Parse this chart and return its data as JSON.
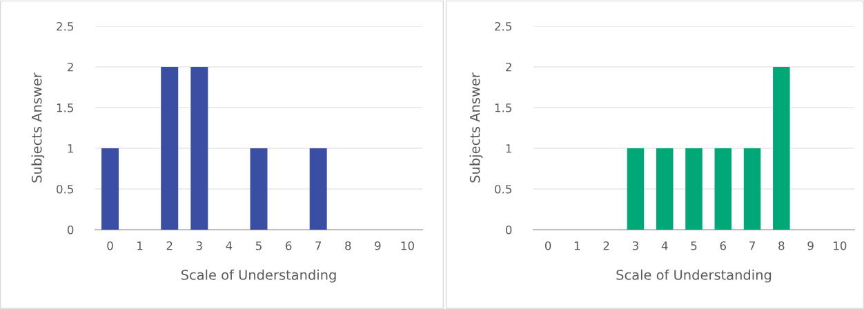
{
  "chart_data": [
    {
      "type": "bar",
      "xlabel": "Scale of Understanding",
      "ylabel": "Subjects Answer",
      "categories": [
        "0",
        "1",
        "2",
        "3",
        "4",
        "5",
        "6",
        "7",
        "8",
        "9",
        "10"
      ],
      "values": [
        1,
        0,
        2,
        2,
        0,
        1,
        0,
        1,
        0,
        0,
        0
      ],
      "color": "#3a4fa3",
      "ylim": [
        0,
        2.5
      ],
      "yticks": [
        0,
        0.5,
        1,
        1.5,
        2,
        2.5
      ],
      "grid": "y"
    },
    {
      "type": "bar",
      "xlabel": "Scale of Understanding",
      "ylabel": "Subjects Answer",
      "categories": [
        "0",
        "1",
        "2",
        "3",
        "4",
        "5",
        "6",
        "7",
        "8",
        "9",
        "10"
      ],
      "values": [
        0,
        0,
        0,
        1,
        1,
        1,
        1,
        1,
        2,
        0,
        0
      ],
      "color": "#00a878",
      "ylim": [
        0,
        2.5
      ],
      "yticks": [
        0,
        0.5,
        1,
        1.5,
        2,
        2.5
      ],
      "grid": "y"
    }
  ]
}
